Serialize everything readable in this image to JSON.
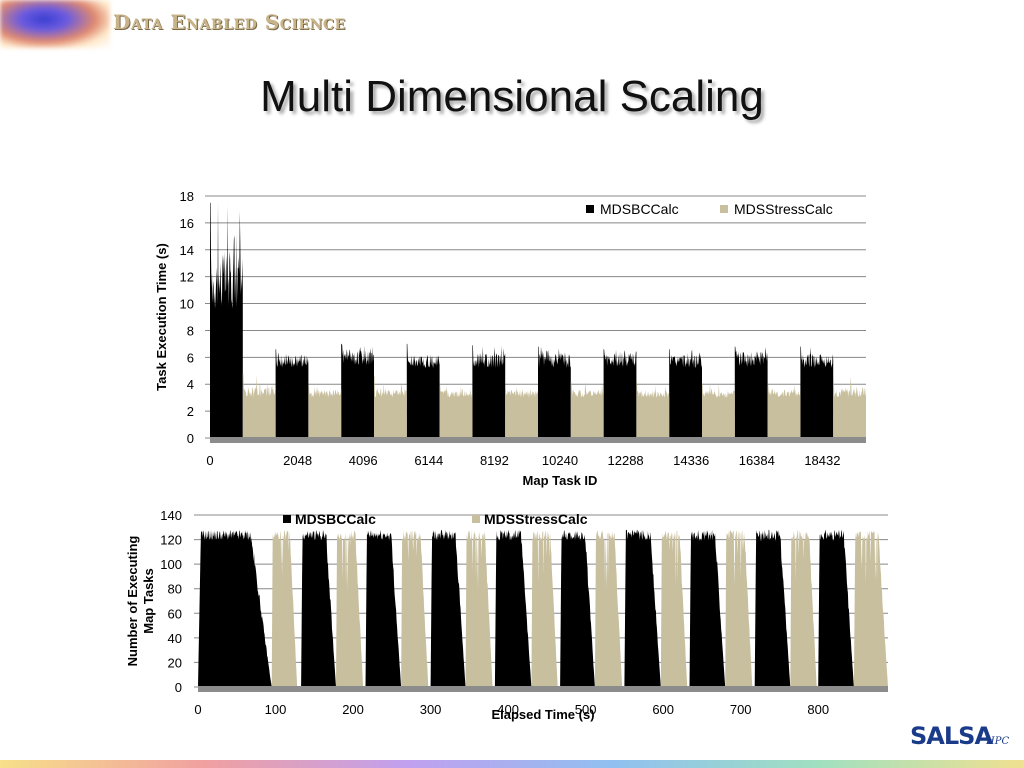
{
  "header": {
    "brand": "Data Enabled Science",
    "title": "Multi Dimensional Scaling"
  },
  "footer": {
    "logo_text": "SALSA",
    "logo_sub": "HPC"
  },
  "colors": {
    "MDSBCCalc": "#000000",
    "MDSStressCalc": "#c8bf9e",
    "grid": "#888888",
    "baseline": "#8c8c8c"
  },
  "chart_data": [
    {
      "type": "bar",
      "xlabel": "Map Task ID",
      "ylabel": "Task Execution Time (s)",
      "ylim": [
        0,
        18
      ],
      "yticks": [
        0,
        2,
        4,
        6,
        8,
        10,
        12,
        14,
        16,
        18
      ],
      "xlim": [
        0,
        20480
      ],
      "xticks": [
        0,
        2048,
        4096,
        6144,
        8192,
        10240,
        12288,
        14336,
        16384,
        18432
      ],
      "grid": true,
      "legend_position": "top-right",
      "series": [
        {
          "name": "MDSBCCalc",
          "color": "#000000",
          "segments": [
            {
              "x_start": 0,
              "x_end": 1024,
              "y_min": 9.5,
              "y_max": 14,
              "peak": 17.5
            },
            {
              "x_start": 2048,
              "x_end": 3072,
              "y_min": 5.2,
              "y_max": 6.2,
              "peak": 6.6
            },
            {
              "x_start": 4096,
              "x_end": 5120,
              "y_min": 5.4,
              "y_max": 6.6,
              "peak": 7.0
            },
            {
              "x_start": 6144,
              "x_end": 7168,
              "y_min": 5.2,
              "y_max": 6.2,
              "peak": 7.0
            },
            {
              "x_start": 8192,
              "x_end": 9216,
              "y_min": 5.2,
              "y_max": 6.4,
              "peak": 6.9
            },
            {
              "x_start": 10240,
              "x_end": 11264,
              "y_min": 5.2,
              "y_max": 6.4,
              "peak": 6.8
            },
            {
              "x_start": 12288,
              "x_end": 13312,
              "y_min": 5.3,
              "y_max": 6.4,
              "peak": 6.6
            },
            {
              "x_start": 14336,
              "x_end": 15360,
              "y_min": 5.2,
              "y_max": 6.2,
              "peak": 6.6
            },
            {
              "x_start": 16384,
              "x_end": 17408,
              "y_min": 5.3,
              "y_max": 6.5,
              "peak": 6.8
            },
            {
              "x_start": 18432,
              "x_end": 19456,
              "y_min": 5.2,
              "y_max": 6.3,
              "peak": 6.8
            }
          ]
        },
        {
          "name": "MDSStressCalc",
          "color": "#c8bf9e",
          "segments": [
            {
              "x_start": 1024,
              "x_end": 2048,
              "y_min": 3.0,
              "y_max": 3.8,
              "peak": 4.8
            },
            {
              "x_start": 3072,
              "x_end": 4096,
              "y_min": 3.0,
              "y_max": 3.6,
              "peak": 3.9
            },
            {
              "x_start": 5120,
              "x_end": 6144,
              "y_min": 3.0,
              "y_max": 3.8,
              "peak": 4.6
            },
            {
              "x_start": 7168,
              "x_end": 8192,
              "y_min": 3.0,
              "y_max": 3.6,
              "peak": 4.0
            },
            {
              "x_start": 9216,
              "x_end": 10240,
              "y_min": 3.0,
              "y_max": 3.6,
              "peak": 3.9
            },
            {
              "x_start": 11264,
              "x_end": 12288,
              "y_min": 3.0,
              "y_max": 3.6,
              "peak": 4.2
            },
            {
              "x_start": 13312,
              "x_end": 14336,
              "y_min": 3.0,
              "y_max": 3.6,
              "peak": 4.2
            },
            {
              "x_start": 15360,
              "x_end": 16384,
              "y_min": 3.0,
              "y_max": 3.6,
              "peak": 4.1
            },
            {
              "x_start": 17408,
              "x_end": 18432,
              "y_min": 3.0,
              "y_max": 3.6,
              "peak": 4.0
            },
            {
              "x_start": 19456,
              "x_end": 20480,
              "y_min": 3.0,
              "y_max": 3.8,
              "peak": 4.6
            }
          ]
        }
      ]
    },
    {
      "type": "area",
      "xlabel": "Elapsed Time (s)",
      "ylabel": "Number of Executing Map Tasks",
      "ylim": [
        0,
        140
      ],
      "yticks": [
        0,
        20,
        40,
        60,
        80,
        100,
        120,
        140
      ],
      "xlim": [
        0,
        890
      ],
      "xticks": [
        0,
        100,
        200,
        300,
        400,
        500,
        600,
        700,
        800
      ],
      "grid": true,
      "legend_position": "top",
      "series": [
        {
          "name": "MDSBCCalc",
          "color": "#000000",
          "pulses": [
            {
              "start": 0,
              "end": 95,
              "max": 128
            },
            {
              "start": 133,
              "end": 178,
              "max": 128
            },
            {
              "start": 216,
              "end": 262,
              "max": 128
            },
            {
              "start": 300,
              "end": 345,
              "max": 128
            },
            {
              "start": 383,
              "end": 430,
              "max": 128
            },
            {
              "start": 467,
              "end": 512,
              "max": 128
            },
            {
              "start": 550,
              "end": 597,
              "max": 128
            },
            {
              "start": 634,
              "end": 680,
              "max": 128
            },
            {
              "start": 718,
              "end": 764,
              "max": 128
            },
            {
              "start": 800,
              "end": 846,
              "max": 128
            }
          ]
        },
        {
          "name": "MDSStressCalc",
          "color": "#c8bf9e",
          "pulses": [
            {
              "start": 95,
              "end": 128,
              "max": 128
            },
            {
              "start": 178,
              "end": 213,
              "max": 128
            },
            {
              "start": 262,
              "end": 297,
              "max": 128
            },
            {
              "start": 345,
              "end": 380,
              "max": 128
            },
            {
              "start": 430,
              "end": 464,
              "max": 128
            },
            {
              "start": 512,
              "end": 547,
              "max": 128
            },
            {
              "start": 597,
              "end": 631,
              "max": 128
            },
            {
              "start": 680,
              "end": 715,
              "max": 128
            },
            {
              "start": 764,
              "end": 798,
              "max": 128
            },
            {
              "start": 846,
              "end": 890,
              "max": 128
            }
          ]
        }
      ]
    }
  ]
}
